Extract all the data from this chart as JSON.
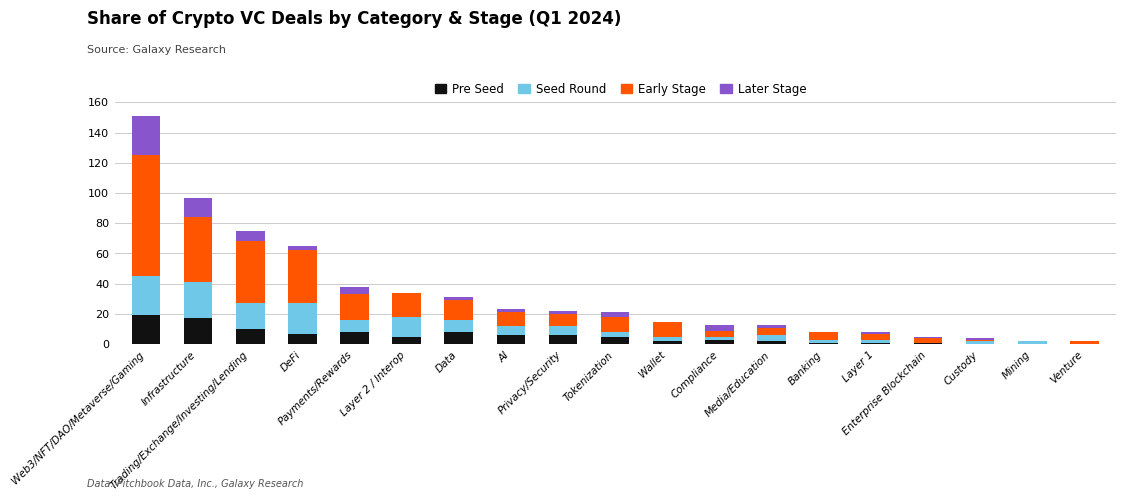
{
  "title": "Share of Crypto VC Deals by Category & Stage (Q1 2024)",
  "subtitle": "Source: Galaxy Research",
  "footer": "Data: Pitchbook Data, Inc., Galaxy Research",
  "legend_labels": [
    "Pre Seed",
    "Seed Round",
    "Early Stage",
    "Later Stage"
  ],
  "colors": {
    "pre_seed": "#111111",
    "seed_round": "#70C8E8",
    "early_stage": "#FF5500",
    "later_stage": "#8855CC"
  },
  "categories": [
    "Web3/NFT/DAO/Metaverse/Gaming",
    "Infrastructure",
    "Trading/Exchange/Investing/Lending",
    "DeFi",
    "Payments/Rewards",
    "Layer 2 / Interop",
    "Data",
    "AI",
    "Privacy/Security",
    "Tokenization",
    "Wallet",
    "Compliance",
    "Media/Education",
    "Banking",
    "Layer 1",
    "Enterprise Blockchain",
    "Custody",
    "Mining",
    "Venture"
  ],
  "pre_seed": [
    19,
    17,
    10,
    7,
    8,
    5,
    8,
    6,
    6,
    5,
    2,
    3,
    2,
    1,
    1,
    1,
    0,
    0,
    0
  ],
  "seed_round": [
    26,
    24,
    17,
    20,
    8,
    13,
    8,
    6,
    6,
    3,
    3,
    2,
    4,
    2,
    2,
    0,
    2,
    2,
    0
  ],
  "early_stage": [
    80,
    43,
    41,
    35,
    17,
    16,
    13,
    9,
    8,
    10,
    10,
    4,
    5,
    5,
    4,
    3,
    1,
    0,
    2
  ],
  "later_stage": [
    26,
    13,
    7,
    3,
    5,
    0,
    2,
    2,
    2,
    3,
    0,
    4,
    2,
    0,
    1,
    1,
    1,
    0,
    0
  ],
  "ylim": [
    0,
    165
  ],
  "yticks": [
    0,
    20,
    40,
    60,
    80,
    100,
    120,
    140,
    160
  ],
  "background_color": "#FFFFFF",
  "grid_color": "#CCCCCC",
  "fig_width": 11.0,
  "fig_height": 4.99,
  "dpi": 100
}
